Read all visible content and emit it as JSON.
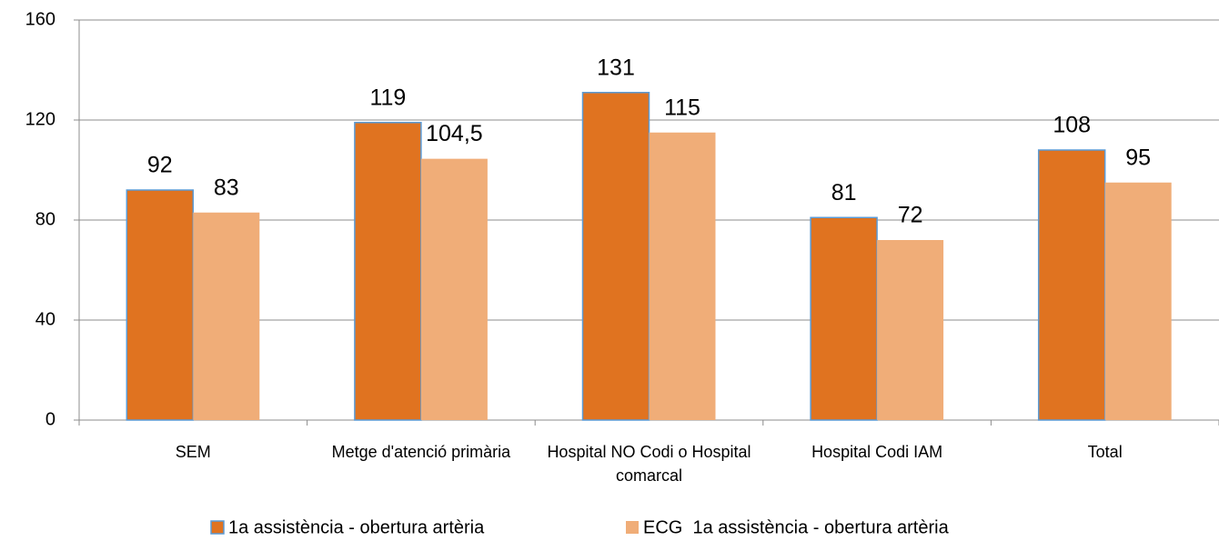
{
  "chart_data": {
    "type": "bar",
    "categories": [
      "SEM",
      "Metge d'atenció primària",
      "Hospital NO Codi o Hospital comarcal",
      "Hospital Codi IAM",
      "Total"
    ],
    "series": [
      {
        "name": "1a assistència - obertura artèria",
        "color": "#e07320",
        "values": [
          92,
          119,
          131,
          81,
          108
        ],
        "value_labels": [
          "92",
          "119",
          "131",
          "81",
          "108"
        ]
      },
      {
        "name": "ECG  1a assistència - obertura artèria",
        "color": "#f0ad78",
        "values": [
          83,
          104.5,
          115,
          72,
          95
        ],
        "value_labels": [
          "83",
          "104,5",
          "115",
          "72",
          "95"
        ]
      }
    ],
    "ylim": [
      0,
      160
    ],
    "yticks": [
      0,
      40,
      80,
      120,
      160
    ],
    "grid": true,
    "legend": "bottom"
  }
}
